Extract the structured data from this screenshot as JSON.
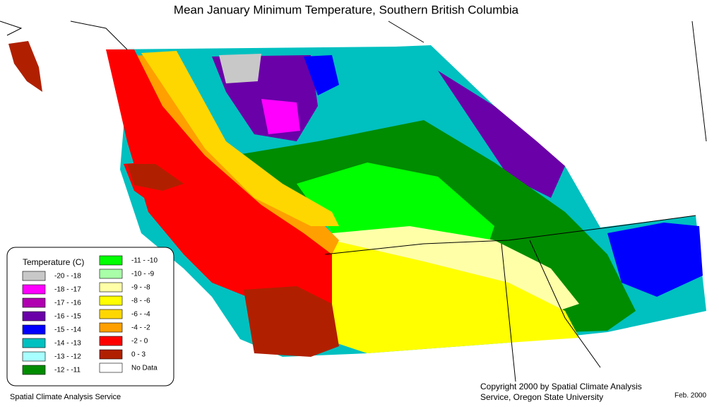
{
  "title": "Mean January Minimum Temperature, Southern British Columbia",
  "legend": {
    "title": "Temperature (C)",
    "items": [
      {
        "label": "-20 - -18",
        "color": "#c8c8c8"
      },
      {
        "label": "-18 - -17",
        "color": "#ff00ff"
      },
      {
        "label": "-17 - -16",
        "color": "#b000b0"
      },
      {
        "label": "-16 - -15",
        "color": "#6a00a8"
      },
      {
        "label": "-15 - -14",
        "color": "#0000ff"
      },
      {
        "label": "-14 - -13",
        "color": "#00c0c0"
      },
      {
        "label": "-13 - -12",
        "color": "#a8ffff"
      },
      {
        "label": "-12 - -11",
        "color": "#008c00"
      },
      {
        "label": "-11 - -10",
        "color": "#00ff00"
      },
      {
        "label": "-10 - -9",
        "color": "#a8ffa8"
      },
      {
        "label": "-9 - -8",
        "color": "#ffffa8"
      },
      {
        "label": "-8 - -6",
        "color": "#ffff00"
      },
      {
        "label": "-6 - -4",
        "color": "#ffd700"
      },
      {
        "label": "-4 - -2",
        "color": "#ffa000"
      },
      {
        "label": "-2 - 0",
        "color": "#ff0000"
      },
      {
        "label": "0 - 3",
        "color": "#b02000"
      },
      {
        "label": "No Data",
        "color": "#ffffff"
      }
    ]
  },
  "footer": {
    "left": "Spatial Climate Analysis Service",
    "copyright": [
      "Copyright 2000 by Spatial Climate Analysis",
      "Service, Oregon State University"
    ],
    "date": "Feb. 2000"
  }
}
